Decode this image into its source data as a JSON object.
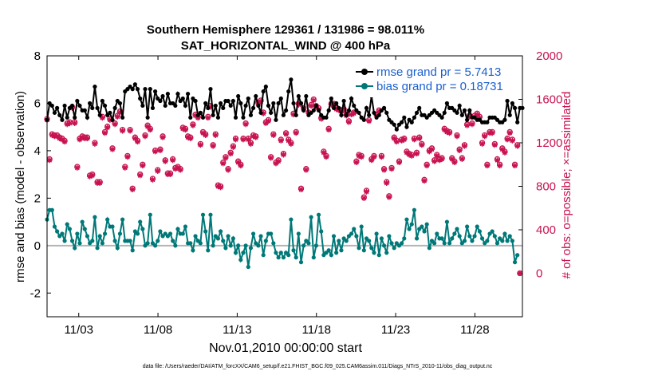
{
  "chart_data": {
    "type": "line",
    "title_line1": "Southern Hemisphere 129361 / 131986 = 98.011%",
    "title_line2": "SAT_HORIZONTAL_WIND @ 400 hPa",
    "xlabel": "Nov.01,2010 00:00:00 start",
    "ylabel_left": "rmse and bias (model - observation)",
    "ylabel_right": "# of obs: o=possible; ×=assimilated",
    "footer": "data file: /Users/raeder/DAI/ATM_forcXX/CAM6_setup/f.e21.FHIST_BGC.f09_025.CAM6assim.011/Diags_NTrS_2010-11/obs_diag_output.nc",
    "x_tick_labels": [
      "11/03",
      "11/08",
      "11/13",
      "11/18",
      "11/23",
      "11/28"
    ],
    "x_tick_days": [
      3,
      8,
      13,
      18,
      23,
      28
    ],
    "xlim_days": [
      1,
      31
    ],
    "left_axis": {
      "ylim": [
        -3,
        8
      ],
      "tick_labels": [
        "-2",
        "0",
        "2",
        "4",
        "6",
        "8"
      ],
      "tick_values": [
        -2,
        0,
        2,
        4,
        6,
        8
      ]
    },
    "right_axis": {
      "ylim": [
        -400,
        2000
      ],
      "tick_labels": [
        "0",
        "400",
        "800",
        "1200",
        "1600",
        "2000"
      ],
      "tick_values": [
        0,
        400,
        800,
        1200,
        1600,
        2000
      ]
    },
    "zero_line": 0,
    "legend": {
      "position": "top-right",
      "rmse_label": "rmse grand pr = 5.7413",
      "bias_label": "bias grand pr = 0.18731"
    },
    "series": [
      {
        "name": "rmse",
        "color": "#000000",
        "values": [
          5.3,
          6.0,
          5.9,
          5.6,
          5.8,
          5.5,
          5.3,
          5.9,
          5.4,
          5.8,
          5.9,
          5.4,
          6.1,
          5.9,
          5.7,
          5.7,
          5.4,
          6.0,
          5.8,
          6.7,
          5.8,
          5.5,
          6.1,
          5.9,
          5.5,
          5.6,
          5.3,
          5.8,
          6.1,
          6.0,
          5.4,
          6.5,
          6.6,
          6.7,
          6.6,
          6.8,
          6.6,
          6.2,
          5.9,
          6.6,
          5.4,
          6.6,
          5.8,
          6.5,
          6.2,
          6.1,
          6.3,
          5.9,
          6.4,
          6.0,
          6.0,
          5.9,
          6.4,
          6.1,
          6.2,
          5.9,
          6.4,
          5.4,
          6.2,
          6.1,
          5.5,
          5.6,
          5.4,
          6.0,
          5.8,
          6.6,
          5.5,
          5.9,
          5.4,
          6.0,
          5.8,
          6.1,
          6.1,
          5.9,
          6.1,
          5.4,
          6.3,
          6.0,
          5.4,
          5.9,
          6.2,
          5.5,
          5.8,
          6.3,
          5.9,
          5.6,
          6.5,
          6.7,
          5.9,
          5.6,
          6.0,
          5.3,
          6.0,
          6.2,
          5.5,
          5.7,
          6.5,
          7.0,
          6.0,
          5.5,
          6.3,
          6.0,
          5.7,
          6.3,
          5.5,
          5.6,
          5.7,
          5.9,
          5.7,
          5.5,
          5.4,
          5.4,
          5.7,
          6.2,
          5.8,
          6.0,
          5.8,
          5.5,
          6.1,
          5.5,
          5.7,
          6.2,
          5.9,
          5.7,
          5.6,
          5.4,
          5.3,
          5.8,
          5.5,
          6.3,
          5.6,
          5.4,
          5.5,
          5.7,
          5.8,
          5.6,
          5.3,
          5.2,
          5.1,
          4.9,
          5.1,
          5.2,
          5.4,
          5.0,
          5.3,
          5.2,
          5.4,
          5.6,
          5.8,
          5.5,
          5.5,
          5.4,
          5.5,
          5.6,
          5.7,
          5.6,
          5.5,
          5.4,
          5.6,
          6.0,
          5.8,
          5.8,
          5.7,
          5.6,
          5.9,
          5.5,
          5.7,
          5.3,
          5.7,
          5.4,
          5.4,
          5.3,
          5.3,
          5.2,
          5.2,
          5.2,
          5.4,
          5.4,
          5.4,
          5.3,
          5.2,
          5.2,
          5.3,
          6.1,
          5.5,
          6.0,
          5.8,
          5.2,
          5.8,
          5.8
        ]
      },
      {
        "name": "bias",
        "color": "#007878",
        "values": [
          1.1,
          1.5,
          1.5,
          0.8,
          0.6,
          0.4,
          0.5,
          0.2,
          0.9,
          0.7,
          0.2,
          -0.1,
          0.5,
          0.1,
          1.0,
          0.7,
          0.4,
          0.1,
          0.2,
          1.2,
          -0.1,
          0.4,
          0.1,
          0.5,
          1.1,
          0.8,
          0.8,
          0.2,
          -0.1,
          0.5,
          1.1,
          0.2,
          0.2,
          0.2,
          -0.2,
          0.6,
          0.5,
          1.0,
          0.7,
          0.0,
          0.1,
          1.3,
          0.1,
          0.0,
          0.2,
          0.6,
          0.4,
          0.5,
          0.4,
          0.5,
          0.2,
          0.0,
          0.7,
          0.5,
          0.5,
          0.8,
          0.1,
          0.1,
          -0.2,
          0.4,
          0.2,
          0.1,
          1.3,
          0.6,
          -0.2,
          1.3,
          0.0,
          0.4,
          0.3,
          0.6,
          0.2,
          -0.1,
          0.4,
          0.0,
          0.3,
          -0.3,
          0.0,
          -0.6,
          -0.3,
          0.0,
          -0.9,
          -0.1,
          0.5,
          0.1,
          0.0,
          0.4,
          -0.4,
          0.2,
          0.5,
          0.5,
          0.1,
          -0.3,
          -0.5,
          -0.3,
          -0.5,
          -0.3,
          -0.4,
          1.1,
          -0.2,
          -0.5,
          0.5,
          -0.7,
          0.0,
          0.2,
          0.1,
          1.2,
          -0.5,
          0.0,
          1.3,
          0.6,
          -0.4,
          -0.3,
          -0.2,
          -0.4,
          0.4,
          -0.3,
          0.2,
          -0.2,
          0.3,
          0.2,
          0.4,
          0.5,
          0.7,
          0.4,
          -0.1,
          0.8,
          -0.2,
          0.3,
          0.2,
          -0.1,
          -0.3,
          0.5,
          -0.4,
          0.3,
          0.0,
          -0.3,
          0.4,
          0.1,
          -0.1,
          0.1,
          0.0,
          0.1,
          0.3,
          1.1,
          0.7,
          0.9,
          1.5,
          0.3,
          0.7,
          0.8,
          0.6,
          0.9,
          -0.1,
          0.2,
          0.1,
          0.5,
          0.3,
          0.3,
          0.1,
          1.0,
          0.1,
          0.3,
          0.5,
          0.7,
          0.4,
          0.1,
          0.2,
          0.8,
          0.4,
          0.2,
          0.4,
          0.8,
          0.6,
          0.3,
          0.1,
          0.2,
          0.5,
          0.6,
          0.4,
          0.1,
          0.3,
          0.2,
          0.5,
          0.2,
          0.4,
          0.2,
          -0.7,
          -0.4
        ]
      },
      {
        "name": "obs_possible",
        "color": "#c8134f",
        "axis": "right",
        "values": [
          1420,
          1050,
          1280,
          1270,
          1270,
          1250,
          1240,
          1220,
          1380,
          1390,
          1530,
          1390,
          980,
          1240,
          1260,
          1250,
          1250,
          900,
          910,
          1200,
          840,
          840,
          1440,
          1300,
          1350,
          1420,
          1150,
          1380,
          1450,
          1490,
          1320,
          980,
          1080,
          1320,
          780,
          1250,
          1220,
          910,
          1000,
          1270,
          1360,
          1330,
          870,
          1130,
          950,
          1140,
          1260,
          1040,
          920,
          920,
          1050,
          970,
          980,
          960,
          1340,
          1330,
          1260,
          1250,
          1370,
          1460,
          1440,
          1190,
          1300,
          1280,
          1440,
          1540,
          1180,
          1280,
          810,
          800,
          1020,
          1070,
          960,
          1110,
          1170,
          1240,
          1030,
          1000,
          1240,
          1380,
          1240,
          1200,
          1270,
          1260,
          1570,
          1590,
          1480,
          1390,
          1410,
          1070,
          1280,
          1020,
          1040,
          1230,
          1100,
          1290,
          1230,
          1200,
          1470,
          1300,
          1560,
          780,
          1520,
          960,
          1480,
          1550,
          1600,
          1540,
          1520,
          1430,
          1120,
          1080,
          1330,
          1560,
          1560,
          1520,
          1510,
          1500,
          1510,
          1460,
          1400,
          1470,
          1480,
          1030,
          1090,
          1080,
          700,
          760,
          1410,
          1050,
          1080,
          1460,
          1500,
          1080,
          960,
          840,
          710,
          970,
          1250,
          1220,
          1030,
          1230,
          1240,
          1120,
          1100,
          1090,
          1240,
          1110,
          1250,
          1190,
          860,
          1000,
          1130,
          1150,
          1040,
          1090,
          1050,
          1060,
          1330,
          1310,
          1300,
          1060,
          1030,
          1270,
          1140,
          1060,
          1180,
          1370,
          1450,
          1380,
          1450,
          1470,
          1440,
          1200,
          1270,
          1000,
          1300,
          1300,
          1190,
          1050,
          1000,
          1150,
          1120,
          1240,
          1300,
          1230,
          1000,
          1180,
          0
        ]
      },
      {
        "name": "obs_assimilated",
        "color": "#c8134f",
        "axis": "right",
        "values": [
          1410,
          1040,
          1270,
          1260,
          1260,
          1240,
          1230,
          1210,
          1370,
          1380,
          1520,
          1380,
          970,
          1230,
          1250,
          1240,
          1240,
          890,
          900,
          1190,
          830,
          830,
          1430,
          1290,
          1340,
          1410,
          1140,
          1370,
          1440,
          1480,
          1310,
          970,
          1070,
          1310,
          770,
          1240,
          1210,
          900,
          990,
          1260,
          1350,
          1320,
          860,
          1120,
          940,
          1130,
          1250,
          1030,
          910,
          910,
          1040,
          960,
          970,
          950,
          1330,
          1320,
          1250,
          1240,
          1360,
          1450,
          1430,
          1180,
          1290,
          1270,
          1430,
          1530,
          1170,
          1270,
          800,
          790,
          1010,
          1060,
          950,
          1100,
          1160,
          1230,
          1020,
          990,
          1230,
          1370,
          1230,
          1190,
          1260,
          1250,
          1560,
          1580,
          1470,
          1380,
          1400,
          1060,
          1270,
          1010,
          1030,
          1220,
          1090,
          1280,
          1220,
          1190,
          1460,
          1290,
          1550,
          770,
          1510,
          950,
          1470,
          1540,
          1590,
          1530,
          1510,
          1420,
          1110,
          1070,
          1320,
          1550,
          1550,
          1510,
          1500,
          1490,
          1500,
          1450,
          1390,
          1460,
          1470,
          1020,
          1080,
          1070,
          690,
          750,
          1400,
          1040,
          1070,
          1450,
          1490,
          1070,
          950,
          830,
          700,
          960,
          1240,
          1210,
          1020,
          1220,
          1230,
          1110,
          1090,
          1080,
          1230,
          1100,
          1240,
          1180,
          850,
          990,
          1120,
          1140,
          1030,
          1080,
          1040,
          1050,
          1320,
          1300,
          1290,
          1050,
          1020,
          1260,
          1130,
          1050,
          1170,
          1360,
          1440,
          1370,
          1440,
          1460,
          1430,
          1190,
          1260,
          990,
          1290,
          1290,
          1180,
          1040,
          990,
          1140,
          1110,
          1230,
          1290,
          1220,
          990,
          1170,
          0
        ]
      }
    ]
  }
}
